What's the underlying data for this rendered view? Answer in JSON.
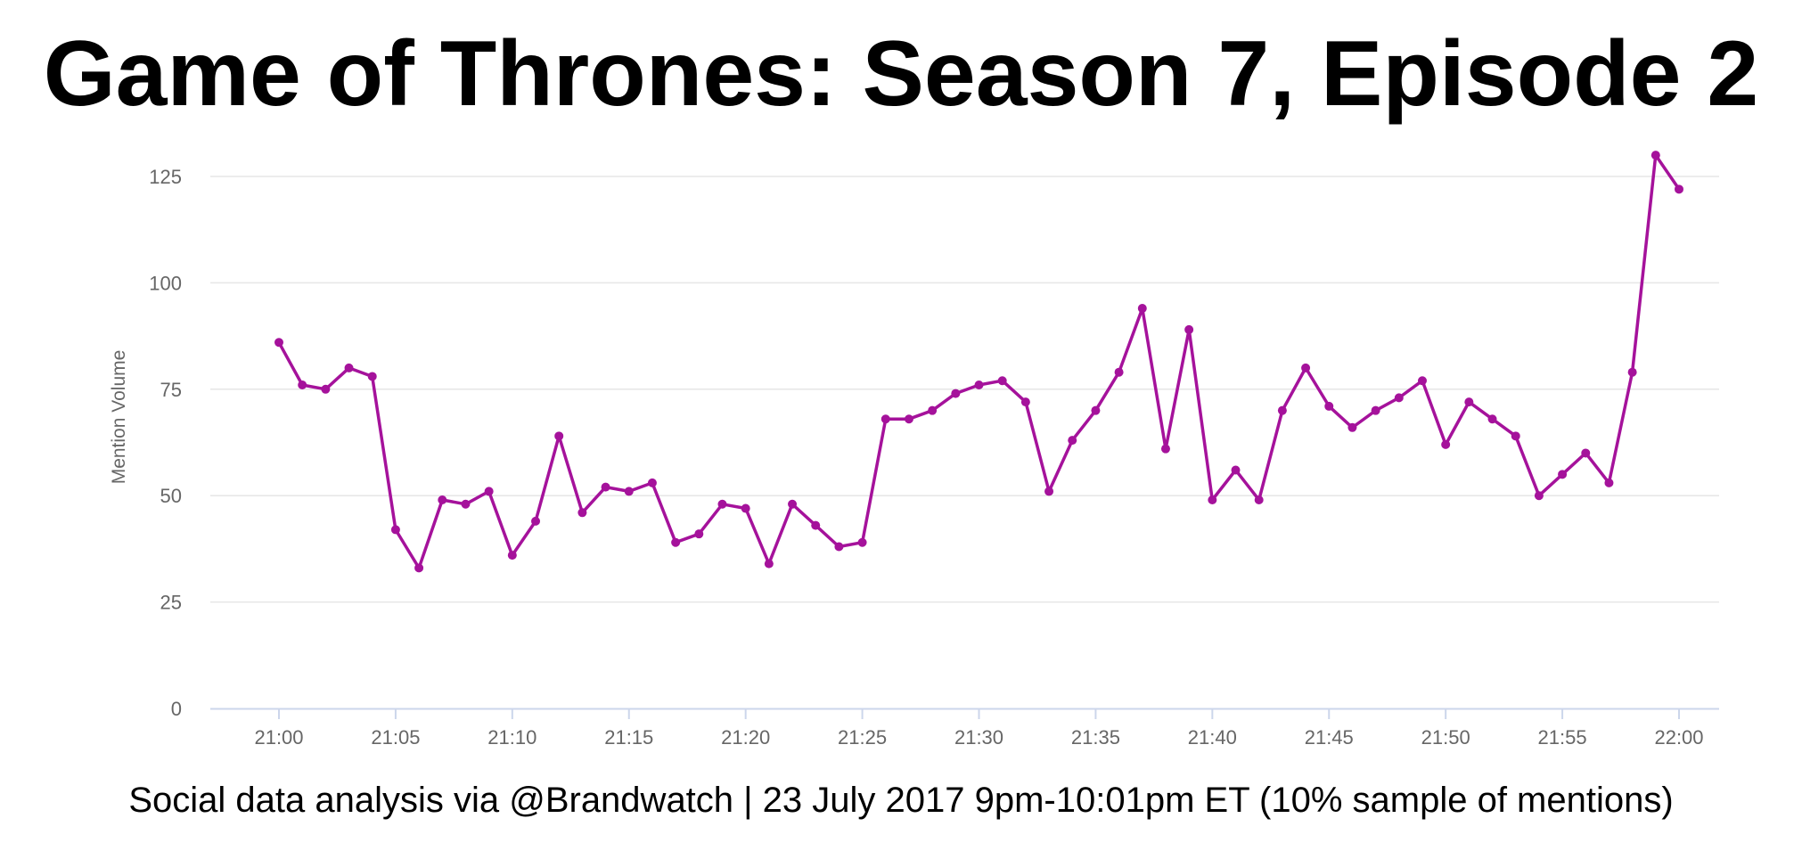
{
  "title": "Game of Thrones: Season 7, Episode 2",
  "caption": "Social data analysis via @Brandwatch | 23 July 2017 9pm-10:01pm ET (10% sample of mentions)",
  "colors": {
    "line": "#A5129B",
    "grid": "#E6E6E6",
    "axis": "#CCD6EB",
    "tick_text": "#666666"
  },
  "chart_data": {
    "type": "line",
    "title": "Game of Thrones: Season 7, Episode 2",
    "xlabel": "",
    "ylabel": "Mention Volume",
    "ylim": [
      0,
      130
    ],
    "yticks": [
      "0",
      "25",
      "50",
      "75",
      "100",
      "125"
    ],
    "xticks": [
      "21:00",
      "21:05",
      "21:10",
      "21:15",
      "21:20",
      "21:25",
      "21:30",
      "21:35",
      "21:40",
      "21:45",
      "21:50",
      "21:55",
      "22:00"
    ],
    "grid": true,
    "legend": "none",
    "x": [
      "21:00",
      "21:01",
      "21:02",
      "21:03",
      "21:04",
      "21:05",
      "21:06",
      "21:07",
      "21:08",
      "21:09",
      "21:10",
      "21:11",
      "21:12",
      "21:13",
      "21:14",
      "21:15",
      "21:16",
      "21:17",
      "21:18",
      "21:19",
      "21:20",
      "21:21",
      "21:22",
      "21:23",
      "21:24",
      "21:25",
      "21:26",
      "21:27",
      "21:28",
      "21:29",
      "21:30",
      "21:31",
      "21:32",
      "21:33",
      "21:34",
      "21:35",
      "21:36",
      "21:37",
      "21:38",
      "21:39",
      "21:40",
      "21:41",
      "21:42",
      "21:43",
      "21:44",
      "21:45",
      "21:46",
      "21:47",
      "21:48",
      "21:49",
      "21:50",
      "21:51",
      "21:52",
      "21:53",
      "21:54",
      "21:55",
      "21:56",
      "21:57",
      "21:58",
      "21:59",
      "22:00"
    ],
    "series": [
      {
        "values": [
          86,
          76,
          75,
          80,
          78,
          42,
          33,
          49,
          48,
          51,
          36,
          44,
          64,
          46,
          52,
          51,
          53,
          39,
          41,
          48,
          47,
          34,
          48,
          43,
          38,
          39,
          68,
          68,
          70,
          74,
          76,
          77,
          72,
          51,
          63,
          70,
          79,
          94,
          61,
          89,
          49,
          56,
          49,
          70,
          80,
          71,
          66,
          70,
          73,
          77,
          62,
          72,
          68,
          64,
          50,
          55,
          60,
          53,
          79,
          130,
          122
        ]
      }
    ]
  }
}
